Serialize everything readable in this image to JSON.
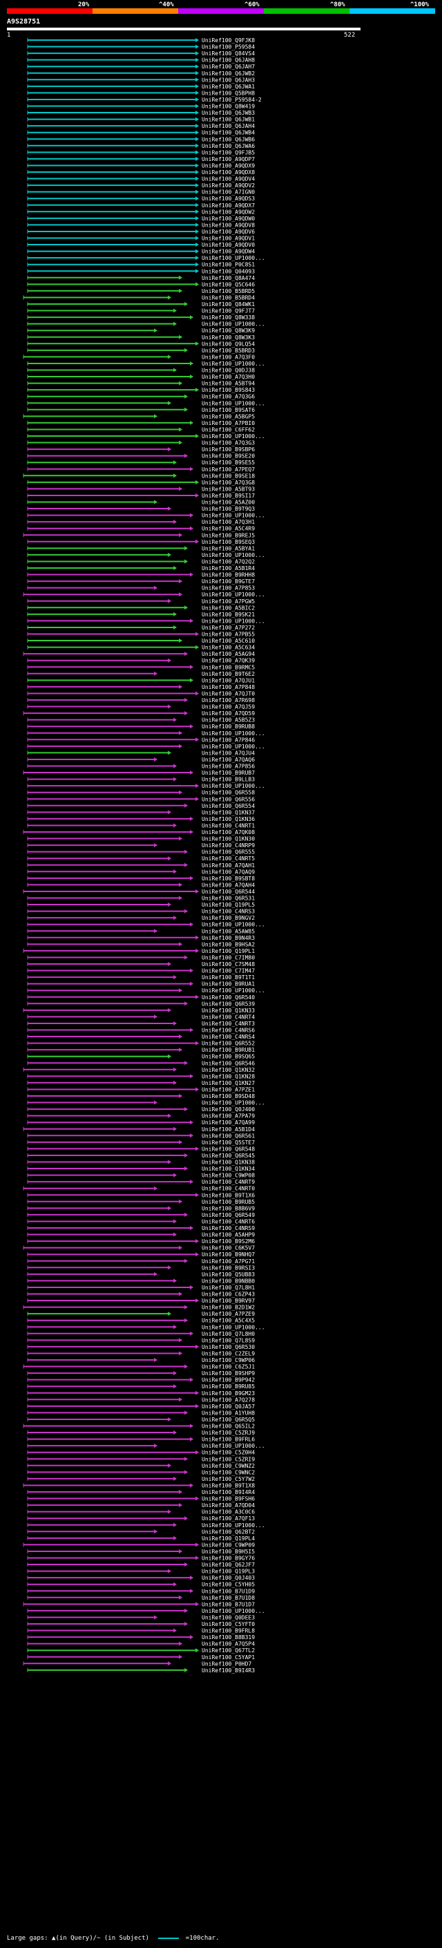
{
  "legend": [
    {
      "label": "20%",
      "color": "#ff0000"
    },
    {
      "label": "^40%",
      "color": "#ff8000"
    },
    {
      "label": "^60%",
      "color": "#c000ff"
    },
    {
      "label": "^80%",
      "color": "#00c000"
    },
    {
      "label": "^100%",
      "color": "#00c8ff"
    }
  ],
  "query": {
    "id": "A9S28751",
    "start": "1",
    "end": "522"
  },
  "colors": {
    "cyan": "#00c8c8",
    "green": "#33cc33",
    "magenta": "#cc33cc",
    "background": "#000000"
  },
  "hits": [
    {
      "label": "UniRef100_Q9FJK8",
      "color": "cyan"
    },
    {
      "label": "UniRef100_P59584",
      "color": "cyan"
    },
    {
      "label": "UniRef100_Q84VS4",
      "color": "cyan"
    },
    {
      "label": "UniRef100_Q6JAH8",
      "color": "cyan"
    },
    {
      "label": "UniRef100_Q6JAH7",
      "color": "cyan"
    },
    {
      "label": "UniRef100_Q6JWB2",
      "color": "cyan"
    },
    {
      "label": "UniRef100_Q6JAH3",
      "color": "cyan"
    },
    {
      "label": "UniRef100_Q6JWA1",
      "color": "cyan"
    },
    {
      "label": "UniRef100_Q5BPH8",
      "color": "cyan"
    },
    {
      "label": "UniRef100_P59584-2",
      "color": "cyan"
    },
    {
      "label": "UniRef100_Q8W419",
      "color": "cyan"
    },
    {
      "label": "UniRef100_Q6JWB3",
      "color": "cyan"
    },
    {
      "label": "UniRef100_Q6JWB1",
      "color": "cyan"
    },
    {
      "label": "UniRef100_Q6JAH4",
      "color": "cyan"
    },
    {
      "label": "UniRef100_Q6JWB4",
      "color": "cyan"
    },
    {
      "label": "UniRef100_Q6JWB6",
      "color": "cyan"
    },
    {
      "label": "UniRef100_Q6JWA6",
      "color": "cyan"
    },
    {
      "label": "UniRef100_Q9FJB5",
      "color": "cyan"
    },
    {
      "label": "UniRef100_A9QDP7",
      "color": "cyan"
    },
    {
      "label": "UniRef100_A9QDX9",
      "color": "cyan"
    },
    {
      "label": "UniRef100_A9QDX8",
      "color": "cyan"
    },
    {
      "label": "UniRef100_A9QDV4",
      "color": "cyan"
    },
    {
      "label": "UniRef100_A9QDV2",
      "color": "cyan"
    },
    {
      "label": "UniRef100_A7IGN0",
      "color": "cyan"
    },
    {
      "label": "UniRef100_A9QDS3",
      "color": "cyan"
    },
    {
      "label": "UniRef100_A9QDX7",
      "color": "cyan"
    },
    {
      "label": "UniRef100_A9QDW2",
      "color": "cyan"
    },
    {
      "label": "UniRef100_A9QDW0",
      "color": "cyan"
    },
    {
      "label": "UniRef100_A9QDV8",
      "color": "cyan"
    },
    {
      "label": "UniRef100_A9QDV6",
      "color": "cyan"
    },
    {
      "label": "UniRef100_A9QDV1",
      "color": "cyan"
    },
    {
      "label": "UniRef100_A9QDV0",
      "color": "cyan"
    },
    {
      "label": "UniRef100_A9QDW4",
      "color": "cyan"
    },
    {
      "label": "UniRef100_UP1000...",
      "color": "cyan"
    },
    {
      "label": "UniRef100_P0C8S1",
      "color": "cyan"
    },
    {
      "label": "UniRef100_Q04093",
      "color": "cyan"
    },
    {
      "label": "UniRef100_Q8A474",
      "color": "green"
    },
    {
      "label": "UniRef100_Q5C646",
      "color": "green"
    },
    {
      "label": "UniRef100_B5BRD5",
      "color": "green"
    },
    {
      "label": "UniRef100_B5BRD4",
      "color": "green"
    },
    {
      "label": "UniRef100_Q84WK1",
      "color": "green"
    },
    {
      "label": "UniRef100_Q9FJT7",
      "color": "green"
    },
    {
      "label": "UniRef100_Q8W338",
      "color": "green"
    },
    {
      "label": "UniRef100_UP1000...",
      "color": "green"
    },
    {
      "label": "UniRef100_Q8W3K9",
      "color": "green"
    },
    {
      "label": "UniRef100_Q8W3K3",
      "color": "green"
    },
    {
      "label": "UniRef100_Q9LQ54",
      "color": "green"
    },
    {
      "label": "UniRef100_B5BRD3",
      "color": "green"
    },
    {
      "label": "UniRef100_A7Q3F0",
      "color": "green"
    },
    {
      "label": "UniRef100_UP1000...",
      "color": "green"
    },
    {
      "label": "UniRef100_Q0DJ38",
      "color": "green"
    },
    {
      "label": "UniRef100_A7Q3H0",
      "color": "green"
    },
    {
      "label": "UniRef100_A5BT94",
      "color": "green"
    },
    {
      "label": "UniRef100_B9S843",
      "color": "green"
    },
    {
      "label": "UniRef100_A7Q3G6",
      "color": "green"
    },
    {
      "label": "UniRef100_UP1000...",
      "color": "green"
    },
    {
      "label": "UniRef100_B9SAT6",
      "color": "green"
    },
    {
      "label": "UniRef100_A5BGP5",
      "color": "green"
    },
    {
      "label": "UniRef100_A7PBI0",
      "color": "green"
    },
    {
      "label": "UniRef100_C6FF62",
      "color": "green"
    },
    {
      "label": "UniRef100_UP1000...",
      "color": "green"
    },
    {
      "label": "UniRef100_A7Q3G3",
      "color": "green"
    },
    {
      "label": "UniRef100_B9SBP6",
      "color": "magenta"
    },
    {
      "label": "UniRef100_B9SE20",
      "color": "magenta"
    },
    {
      "label": "UniRef100_B9SE55",
      "color": "green"
    },
    {
      "label": "UniRef100_A7PEQ7",
      "color": "magenta"
    },
    {
      "label": "UniRef100_B9SE18",
      "color": "green"
    },
    {
      "label": "UniRef100_A7Q3G8",
      "color": "green"
    },
    {
      "label": "UniRef100_A5BT93",
      "color": "magenta"
    },
    {
      "label": "UniRef100_B9SI17",
      "color": "magenta"
    },
    {
      "label": "UniRef100_A5AZ00",
      "color": "green"
    },
    {
      "label": "UniRef100_B9T9Q3",
      "color": "magenta"
    },
    {
      "label": "UniRef100_UP1000...",
      "color": "magenta"
    },
    {
      "label": "UniRef100_A7Q3H1",
      "color": "magenta"
    },
    {
      "label": "UniRef100_A5C4R9",
      "color": "magenta"
    },
    {
      "label": "UniRef100_B9REJ5",
      "color": "magenta"
    },
    {
      "label": "UniRef100_B9SEQ3",
      "color": "magenta"
    },
    {
      "label": "UniRef100_A5BYA1",
      "color": "green"
    },
    {
      "label": "UniRef100_UP1000...",
      "color": "green"
    },
    {
      "label": "UniRef100_A7Q2Q2",
      "color": "green"
    },
    {
      "label": "UniRef100_A5B1R4",
      "color": "green"
    },
    {
      "label": "UniRef100_B9RHH8",
      "color": "magenta"
    },
    {
      "label": "UniRef100_B9GTE7",
      "color": "magenta"
    },
    {
      "label": "UniRef100_A7P853",
      "color": "magenta"
    },
    {
      "label": "UniRef100_UP1000...",
      "color": "magenta"
    },
    {
      "label": "UniRef100_A7PGW5",
      "color": "magenta"
    },
    {
      "label": "UniRef100_A5BIC2",
      "color": "green"
    },
    {
      "label": "UniRef100_B9SK21",
      "color": "green"
    },
    {
      "label": "UniRef100_UP1000...",
      "color": "magenta"
    },
    {
      "label": "UniRef100_A7P272",
      "color": "green"
    },
    {
      "label": "UniRef100_A7PB55",
      "color": "magenta"
    },
    {
      "label": "UniRef100_A5C610",
      "color": "green"
    },
    {
      "label": "UniRef100_A5C634",
      "color": "green"
    },
    {
      "label": "UniRef100_A5AG94",
      "color": "magenta"
    },
    {
      "label": "UniRef100_A7QK39",
      "color": "magenta"
    },
    {
      "label": "UniRef100_B9RMC5",
      "color": "magenta"
    },
    {
      "label": "UniRef100_B9T6E2",
      "color": "magenta"
    },
    {
      "label": "UniRef100_A7QJU1",
      "color": "green"
    },
    {
      "label": "UniRef100_A7P848",
      "color": "magenta"
    },
    {
      "label": "UniRef100_A7QJT0",
      "color": "magenta"
    },
    {
      "label": "UniRef100_A7R698",
      "color": "magenta"
    },
    {
      "label": "UniRef100_A7QJ59",
      "color": "magenta"
    },
    {
      "label": "UniRef100_A7QD59",
      "color": "magenta"
    },
    {
      "label": "UniRef100_A5B5Z3",
      "color": "magenta"
    },
    {
      "label": "UniRef100_B9RUB8",
      "color": "magenta"
    },
    {
      "label": "UniRef100_UP1000...",
      "color": "magenta"
    },
    {
      "label": "UniRef100_A7P846",
      "color": "magenta"
    },
    {
      "label": "UniRef100_UP1000...",
      "color": "magenta"
    },
    {
      "label": "UniRef100_A7QJU4",
      "color": "green"
    },
    {
      "label": "UniRef100_A7QAQ6",
      "color": "magenta"
    },
    {
      "label": "UniRef100_A7P856",
      "color": "magenta"
    },
    {
      "label": "UniRef100_B9RUB7",
      "color": "magenta"
    },
    {
      "label": "UniRef100_B9LLB3",
      "color": "magenta"
    },
    {
      "label": "UniRef100_UP1000...",
      "color": "magenta"
    },
    {
      "label": "UniRef100_Q6R558",
      "color": "magenta"
    },
    {
      "label": "UniRef100_Q6R556",
      "color": "magenta"
    },
    {
      "label": "UniRef100_Q6R554",
      "color": "magenta"
    },
    {
      "label": "UniRef100_Q1KN37",
      "color": "magenta"
    },
    {
      "label": "UniRef100_Q1KN36",
      "color": "magenta"
    },
    {
      "label": "UniRef100_C4NRT1",
      "color": "magenta"
    },
    {
      "label": "UniRef100_A7QK08",
      "color": "magenta"
    },
    {
      "label": "UniRef100_Q1KN30",
      "color": "magenta"
    },
    {
      "label": "UniRef100_C4NRP9",
      "color": "magenta"
    },
    {
      "label": "UniRef100_Q6R555",
      "color": "magenta"
    },
    {
      "label": "UniRef100_C4NRT5",
      "color": "magenta"
    },
    {
      "label": "UniRef100_A7QAH1",
      "color": "magenta"
    },
    {
      "label": "UniRef100_A7QAQ9",
      "color": "magenta"
    },
    {
      "label": "UniRef100_B9SBT8",
      "color": "magenta"
    },
    {
      "label": "UniRef100_A7QAH4",
      "color": "magenta"
    },
    {
      "label": "UniRef100_Q6R544",
      "color": "magenta"
    },
    {
      "label": "UniRef100_Q6R531",
      "color": "magenta"
    },
    {
      "label": "UniRef100_Q19PL5",
      "color": "magenta"
    },
    {
      "label": "UniRef100_C4NRS3",
      "color": "magenta"
    },
    {
      "label": "UniRef100_B9NGV2",
      "color": "magenta"
    },
    {
      "label": "UniRef100_UP1000...",
      "color": "magenta"
    },
    {
      "label": "UniRef100_A5AW85",
      "color": "magenta"
    },
    {
      "label": "UniRef100_B9N4R3",
      "color": "magenta"
    },
    {
      "label": "UniRef100_B9HSA2",
      "color": "magenta"
    },
    {
      "label": "UniRef100_Q19PL1",
      "color": "magenta"
    },
    {
      "label": "UniRef100_C7IM80",
      "color": "magenta"
    },
    {
      "label": "UniRef100_C7SM48",
      "color": "magenta"
    },
    {
      "label": "UniRef100_C7IM47",
      "color": "magenta"
    },
    {
      "label": "UniRef100_B9T1T1",
      "color": "magenta"
    },
    {
      "label": "UniRef100_B9RUA1",
      "color": "magenta"
    },
    {
      "label": "UniRef100_UP1000...",
      "color": "magenta"
    },
    {
      "label": "UniRef100_Q6R540",
      "color": "magenta"
    },
    {
      "label": "UniRef100_Q6R539",
      "color": "magenta"
    },
    {
      "label": "UniRef100_Q1KN33",
      "color": "magenta"
    },
    {
      "label": "UniRef100_C4NRT4",
      "color": "magenta"
    },
    {
      "label": "UniRef100_C4NRT3",
      "color": "magenta"
    },
    {
      "label": "UniRef100_C4NRS6",
      "color": "magenta"
    },
    {
      "label": "UniRef100_C4NRS4",
      "color": "magenta"
    },
    {
      "label": "UniRef100_Q6R552",
      "color": "magenta"
    },
    {
      "label": "UniRef100_B9RUB1",
      "color": "magenta"
    },
    {
      "label": "UniRef100_B9SQ65",
      "color": "green"
    },
    {
      "label": "UniRef100_Q6R546",
      "color": "magenta"
    },
    {
      "label": "UniRef100_Q1KN32",
      "color": "magenta"
    },
    {
      "label": "UniRef100_Q1KN28",
      "color": "magenta"
    },
    {
      "label": "UniRef100_Q1KN27",
      "color": "magenta"
    },
    {
      "label": "UniRef100_A7PZE1",
      "color": "magenta"
    },
    {
      "label": "UniRef100_B9SD48",
      "color": "magenta"
    },
    {
      "label": "UniRef100_UP1000...",
      "color": "magenta"
    },
    {
      "label": "UniRef100_Q0J400",
      "color": "magenta"
    },
    {
      "label": "UniRef100_A7PA79",
      "color": "magenta"
    },
    {
      "label": "UniRef100_A7QA99",
      "color": "magenta"
    },
    {
      "label": "UniRef100_A5B1D4",
      "color": "magenta"
    },
    {
      "label": "UniRef100_Q6R561",
      "color": "magenta"
    },
    {
      "label": "UniRef100_Q5STE7",
      "color": "magenta"
    },
    {
      "label": "UniRef100_Q6R548",
      "color": "magenta"
    },
    {
      "label": "UniRef100_Q6R545",
      "color": "magenta"
    },
    {
      "label": "UniRef100_Q1KN38",
      "color": "magenta"
    },
    {
      "label": "UniRef100_Q1KN34",
      "color": "magenta"
    },
    {
      "label": "UniRef100_C9WP08",
      "color": "magenta"
    },
    {
      "label": "UniRef100_C4NRT9",
      "color": "magenta"
    },
    {
      "label": "UniRef100_C4NRT0",
      "color": "magenta"
    },
    {
      "label": "UniRef100_B9T1X6",
      "color": "magenta"
    },
    {
      "label": "UniRef100_B9RUB5",
      "color": "magenta"
    },
    {
      "label": "UniRef100_B8B6V9",
      "color": "magenta"
    },
    {
      "label": "UniRef100_Q6R549",
      "color": "magenta"
    },
    {
      "label": "UniRef100_C4NRT6",
      "color": "magenta"
    },
    {
      "label": "UniRef100_C4NRS9",
      "color": "magenta"
    },
    {
      "label": "UniRef100_A5AHP9",
      "color": "magenta"
    },
    {
      "label": "UniRef100_B9S2M6",
      "color": "magenta"
    },
    {
      "label": "UniRef100_C6K5V7",
      "color": "magenta"
    },
    {
      "label": "UniRef100_B9NHQ7",
      "color": "magenta"
    },
    {
      "label": "UniRef100_A7PG71",
      "color": "magenta"
    },
    {
      "label": "UniRef100_B9RSI3",
      "color": "magenta"
    },
    {
      "label": "UniRef100_Q5UB83",
      "color": "magenta"
    },
    {
      "label": "UniRef100_B9NBB0",
      "color": "magenta"
    },
    {
      "label": "UniRef100_Q7L8H1",
      "color": "magenta"
    },
    {
      "label": "UniRef100_C6ZP43",
      "color": "magenta"
    },
    {
      "label": "UniRef100_B9RV97",
      "color": "magenta"
    },
    {
      "label": "UniRef100_B2D1W2",
      "color": "magenta"
    },
    {
      "label": "UniRef100_A7PZE9",
      "color": "green"
    },
    {
      "label": "UniRef100_A5C4X5",
      "color": "magenta"
    },
    {
      "label": "UniRef100_UP1000...",
      "color": "magenta"
    },
    {
      "label": "UniRef100_Q7L8H0",
      "color": "magenta"
    },
    {
      "label": "UniRef100_Q7L8S9",
      "color": "magenta"
    },
    {
      "label": "UniRef100_Q6R530",
      "color": "magenta"
    },
    {
      "label": "UniRef100_C2ZEL9",
      "color": "magenta"
    },
    {
      "label": "UniRef100_C9WP06",
      "color": "magenta"
    },
    {
      "label": "UniRef100_C6Z5J1",
      "color": "magenta"
    },
    {
      "label": "UniRef100_B9SHP9",
      "color": "magenta"
    },
    {
      "label": "UniRef100_B9P942",
      "color": "magenta"
    },
    {
      "label": "UniRef100_B9RU85",
      "color": "magenta"
    },
    {
      "label": "UniRef100_B9GM23",
      "color": "magenta"
    },
    {
      "label": "UniRef100_A7Q278",
      "color": "magenta"
    },
    {
      "label": "UniRef100_Q0JA57",
      "color": "magenta"
    },
    {
      "label": "UniRef100_A1YUH8",
      "color": "magenta"
    },
    {
      "label": "UniRef100_Q6R5Q5",
      "color": "magenta"
    },
    {
      "label": "UniRef100_Q65IL2",
      "color": "magenta"
    },
    {
      "label": "UniRef100_C5ZRJ9",
      "color": "magenta"
    },
    {
      "label": "UniRef100_B9FRL6",
      "color": "magenta"
    },
    {
      "label": "UniRef100_UP1000...",
      "color": "magenta"
    },
    {
      "label": "UniRef100_C5Z0H4",
      "color": "magenta"
    },
    {
      "label": "UniRef100_C5ZRI9",
      "color": "magenta"
    },
    {
      "label": "UniRef100_C9WNZ2",
      "color": "magenta"
    },
    {
      "label": "UniRef100_C9WNC2",
      "color": "magenta"
    },
    {
      "label": "UniRef100_C5Y7W2",
      "color": "magenta"
    },
    {
      "label": "UniRef100_B9T1X8",
      "color": "magenta"
    },
    {
      "label": "UniRef100_B9I4R4",
      "color": "magenta"
    },
    {
      "label": "UniRef100_B9FSH6",
      "color": "magenta"
    },
    {
      "label": "UniRef100_A7QD04",
      "color": "magenta"
    },
    {
      "label": "UniRef100_A3C0C6",
      "color": "magenta"
    },
    {
      "label": "UniRef100_A7QF13",
      "color": "magenta"
    },
    {
      "label": "UniRef100_UP1000...",
      "color": "magenta"
    },
    {
      "label": "UniRef100_Q62BT2",
      "color": "magenta"
    },
    {
      "label": "UniRef100_Q19PL4",
      "color": "magenta"
    },
    {
      "label": "UniRef100_C9WP09",
      "color": "magenta"
    },
    {
      "label": "UniRef100_B9H5I5",
      "color": "magenta"
    },
    {
      "label": "UniRef100_B9GY76",
      "color": "magenta"
    },
    {
      "label": "UniRef100_Q62JF7",
      "color": "magenta"
    },
    {
      "label": "UniRef100_Q19PL3",
      "color": "magenta"
    },
    {
      "label": "UniRef100_Q0J403",
      "color": "magenta"
    },
    {
      "label": "UniRef100_C5YH05",
      "color": "magenta"
    },
    {
      "label": "UniRef100_B7U1D9",
      "color": "magenta"
    },
    {
      "label": "UniRef100_B7U1D8",
      "color": "magenta"
    },
    {
      "label": "UniRef100_B7U1D7",
      "color": "magenta"
    },
    {
      "label": "UniRef100_UP1000...",
      "color": "magenta"
    },
    {
      "label": "UniRef100_Q0DEE3",
      "color": "magenta"
    },
    {
      "label": "UniRef100_C5YFT0",
      "color": "magenta"
    },
    {
      "label": "UniRef100_B9FRL8",
      "color": "magenta"
    },
    {
      "label": "UniRef100_B8B319",
      "color": "magenta"
    },
    {
      "label": "UniRef100_A7Q5P4",
      "color": "magenta"
    },
    {
      "label": "UniRef100_Q67TL2",
      "color": "green"
    },
    {
      "label": "UniRef100_C5YAP1",
      "color": "magenta"
    },
    {
      "label": "UniRef100_P0HD7",
      "color": "magenta"
    },
    {
      "label": "UniRef100_B9I4R3",
      "color": "green"
    }
  ],
  "footer": {
    "gaps_text": "Large gaps: ▲(in Query)/~ (in Subject)",
    "scale_text": "=100char."
  }
}
